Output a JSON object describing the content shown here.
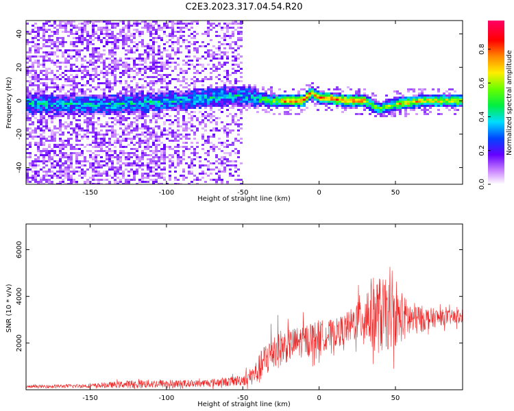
{
  "title": "C2E3.2023.317.04.54.R20",
  "chart_data": [
    {
      "type": "heatmap",
      "xlabel": "Height of straight line (km)",
      "ylabel": "Frequency (Hz)",
      "xlim": [
        -192,
        94
      ],
      "ylim": [
        -50,
        48
      ],
      "xticks": [
        -150,
        -100,
        -50,
        0,
        50
      ],
      "xtick_labels": [
        "-150",
        "-100",
        "-50",
        "0",
        "50"
      ],
      "yticks": [
        40,
        20,
        0,
        -20,
        -40
      ],
      "ytick_labels": [
        "40",
        "20",
        "0",
        "-20",
        "-40"
      ],
      "ridge": {
        "x": [
          -150,
          -130,
          -110,
          -90,
          -70,
          -50,
          -40,
          -30,
          -20,
          -10,
          -5,
          0,
          10,
          20,
          30,
          35,
          40,
          50,
          60,
          70,
          80,
          94
        ],
        "y": [
          -2,
          -2,
          -1,
          0,
          2,
          3,
          1,
          0,
          0,
          0,
          5,
          2,
          1,
          0,
          0,
          -3,
          -5,
          -2,
          -1,
          0,
          0,
          0
        ]
      },
      "colorbar": {
        "label": "Normalized spectral amplitude",
        "ticks": [
          0.0,
          0.2,
          0.4,
          0.6,
          0.8
        ],
        "tick_labels": [
          "0.0",
          "0.2",
          "0.4",
          "0.6",
          "0.8"
        ],
        "range": [
          0,
          0.97
        ]
      }
    },
    {
      "type": "line",
      "xlabel": "Height of straight line (km)",
      "ylabel": "SNR (10 * v/v)",
      "xlim": [
        -192,
        94
      ],
      "ylim": [
        0,
        7100
      ],
      "xticks": [
        -150,
        -100,
        -50,
        0,
        50
      ],
      "xtick_labels": [
        "-150",
        "-100",
        "-50",
        "0",
        "50"
      ],
      "yticks": [
        2000,
        4000,
        6000
      ],
      "ytick_labels": [
        "2000",
        "4000",
        "6000"
      ],
      "color": "#ee2222",
      "envelope": {
        "x": [
          -192,
          -150,
          -120,
          -100,
          -80,
          -60,
          -50,
          -45,
          -40,
          -35,
          -30,
          -20,
          -10,
          0,
          10,
          20,
          25,
          30,
          35,
          40,
          45,
          50,
          55,
          60,
          70,
          80,
          94
        ],
        "mean": [
          130,
          170,
          250,
          260,
          270,
          340,
          420,
          550,
          800,
          1300,
          1700,
          1900,
          2100,
          2300,
          2400,
          2700,
          3000,
          3200,
          3250,
          3200,
          3150,
          3100,
          3050,
          3000,
          3050,
          3100,
          3100
        ],
        "amp": [
          60,
          90,
          180,
          180,
          150,
          200,
          250,
          350,
          600,
          800,
          900,
          700,
          700,
          700,
          600,
          700,
          900,
          1300,
          1600,
          1700,
          1500,
          1200,
          1000,
          800,
          500,
          350,
          300
        ]
      }
    }
  ]
}
